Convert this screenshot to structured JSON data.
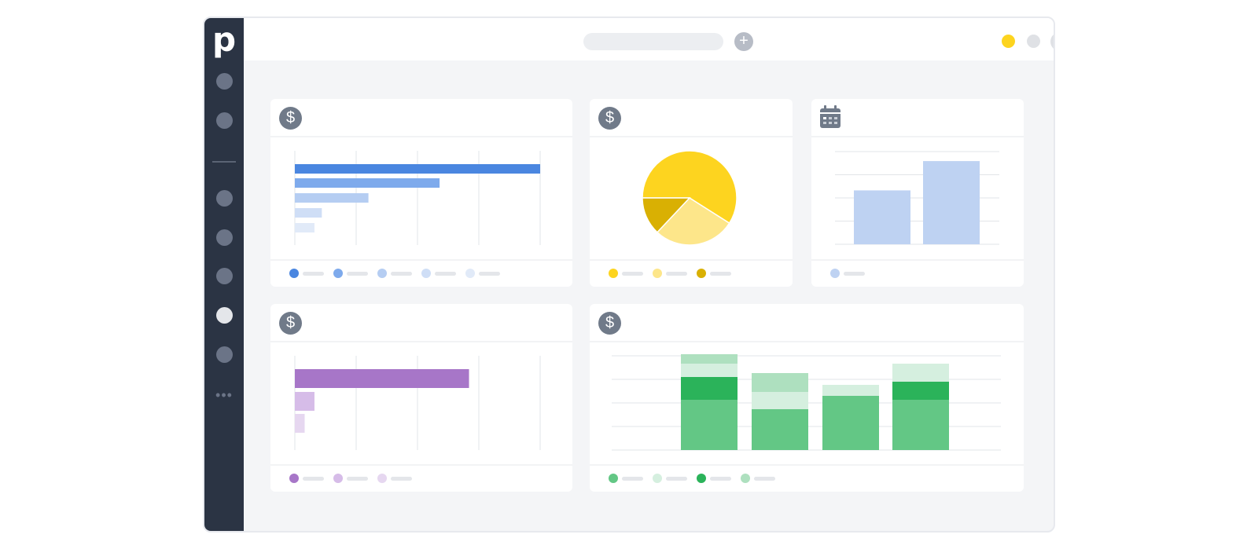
{
  "app": {
    "logo_text": "p"
  },
  "sidebar": {
    "items": [
      {
        "icon": "nav-circle",
        "active": false
      },
      {
        "icon": "nav-circle",
        "active": false
      },
      {
        "icon": "nav-circle",
        "active": false
      },
      {
        "icon": "nav-circle",
        "active": false
      },
      {
        "icon": "nav-circle",
        "active": false
      },
      {
        "icon": "nav-circle",
        "active": true
      },
      {
        "icon": "nav-circle",
        "active": false
      }
    ],
    "more_label": "•••"
  },
  "topbar": {
    "search_placeholder": "",
    "add_label": "+"
  },
  "colors": {
    "sidebar_bg": "#2b3444",
    "accent_yellow": "#fdd41f",
    "blue": "#4a86e0",
    "purple": "#a776c8",
    "green": "#2bb35a"
  },
  "widgets": [
    {
      "id": "widget-blue-bars",
      "icon": "dollar-icon",
      "icon_glyph": "$",
      "legend_colors": [
        "#4a86e0",
        "#7eaaec",
        "#b5cdf2",
        "#cfdef6",
        "#e1eaf8"
      ]
    },
    {
      "id": "widget-pie",
      "icon": "dollar-icon",
      "icon_glyph": "$",
      "legend_colors": [
        "#fdd41f",
        "#fde68a",
        "#d9b003"
      ]
    },
    {
      "id": "widget-calendar-bars",
      "icon": "calendar-icon",
      "legend_colors": [
        "#bed2f2"
      ]
    },
    {
      "id": "widget-purple-bars",
      "icon": "dollar-icon",
      "icon_glyph": "$",
      "legend_colors": [
        "#a776c8",
        "#d6bce8",
        "#e6d7f0"
      ]
    },
    {
      "id": "widget-green-stacked",
      "icon": "dollar-icon",
      "icon_glyph": "$",
      "legend_colors": [
        "#63c785",
        "#d5efdf",
        "#2bb35a",
        "#aee0bf"
      ]
    }
  ],
  "chart_data": [
    {
      "type": "bar",
      "orientation": "horizontal",
      "values": [
        100,
        59,
        30,
        11,
        8
      ],
      "colors": [
        "#4a86e0",
        "#7eaaec",
        "#b5cdf2",
        "#cfdef6",
        "#e1eaf8"
      ],
      "xlim": [
        0,
        100
      ],
      "grid": true
    },
    {
      "type": "pie",
      "values": [
        59,
        28,
        13
      ],
      "colors": [
        "#fdd41f",
        "#fde68a",
        "#d9b003"
      ]
    },
    {
      "type": "bar",
      "values": [
        68,
        105
      ],
      "colors": [
        "#bed2f2"
      ],
      "ylim": [
        0,
        117
      ],
      "grid": true
    },
    {
      "type": "bar",
      "orientation": "horizontal",
      "values": [
        71,
        8,
        4
      ],
      "colors": [
        "#a776c8",
        "#d6bce8",
        "#e6d7f0"
      ],
      "xlim": [
        0,
        100
      ],
      "grid": true
    },
    {
      "type": "bar",
      "stacked": true,
      "series": [
        {
          "values": [
            64,
            52,
            69,
            64
          ],
          "color": "#63c785"
        },
        {
          "values": [
            0,
            22,
            0,
            0
          ],
          "color": "#d5efdf"
        },
        {
          "values": [
            29,
            0,
            0,
            23
          ],
          "color": "#2bb35a"
        },
        {
          "values": [
            0,
            24,
            0,
            0
          ],
          "color": "#aee0bf"
        },
        {
          "values": [
            17,
            0,
            14,
            23
          ],
          "color": "#d5efdf"
        },
        {
          "values": [
            12,
            0,
            0,
            0
          ],
          "color": "#aee0bf"
        }
      ],
      "ylim": [
        0,
        120
      ],
      "grid": true
    }
  ]
}
